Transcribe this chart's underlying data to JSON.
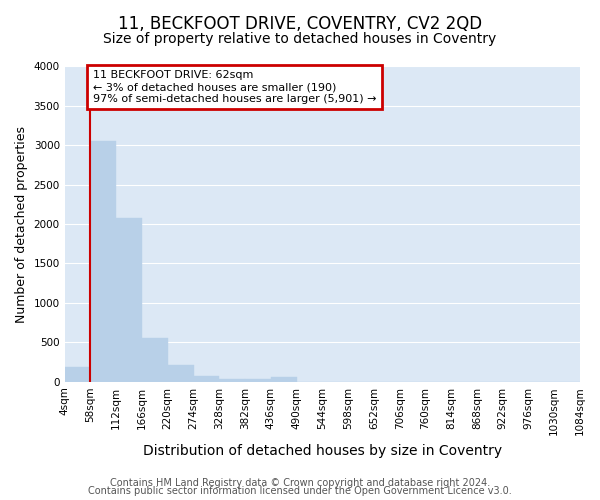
{
  "title": "11, BECKFOOT DRIVE, COVENTRY, CV2 2QD",
  "subtitle": "Size of property relative to detached houses in Coventry",
  "xlabel": "Distribution of detached houses by size in Coventry",
  "ylabel": "Number of detached properties",
  "bar_values": [
    190,
    3060,
    2080,
    560,
    210,
    70,
    40,
    40,
    60,
    0,
    0,
    0,
    0,
    0,
    0,
    0,
    0,
    0,
    0,
    0
  ],
  "bar_labels": [
    "4sqm",
    "58sqm",
    "112sqm",
    "166sqm",
    "220sqm",
    "274sqm",
    "328sqm",
    "382sqm",
    "436sqm",
    "490sqm",
    "544sqm",
    "598sqm",
    "652sqm",
    "706sqm",
    "760sqm",
    "814sqm",
    "868sqm",
    "922sqm",
    "976sqm",
    "1030sqm",
    "1084sqm"
  ],
  "bar_color": "#b8d0e8",
  "bar_edge_color": "#b8d0e8",
  "annotation_text": "11 BECKFOOT DRIVE: 62sqm\n← 3% of detached houses are smaller (190)\n97% of semi-detached houses are larger (5,901) →",
  "annotation_box_facecolor": "#ffffff",
  "annotation_edge_color": "#cc0000",
  "ylim": [
    0,
    4000
  ],
  "yticks": [
    0,
    500,
    1000,
    1500,
    2000,
    2500,
    3000,
    3500,
    4000
  ],
  "figure_bg": "#ffffff",
  "plot_bg_color": "#dce8f5",
  "grid_color": "#ffffff",
  "footer_line1": "Contains HM Land Registry data © Crown copyright and database right 2024.",
  "footer_line2": "Contains public sector information licensed under the Open Government Licence v3.0.",
  "red_line_color": "#cc0000",
  "title_fontsize": 12,
  "subtitle_fontsize": 10,
  "xlabel_fontsize": 10,
  "ylabel_fontsize": 9,
  "tick_fontsize": 7.5,
  "annot_fontsize": 8,
  "footer_fontsize": 7
}
